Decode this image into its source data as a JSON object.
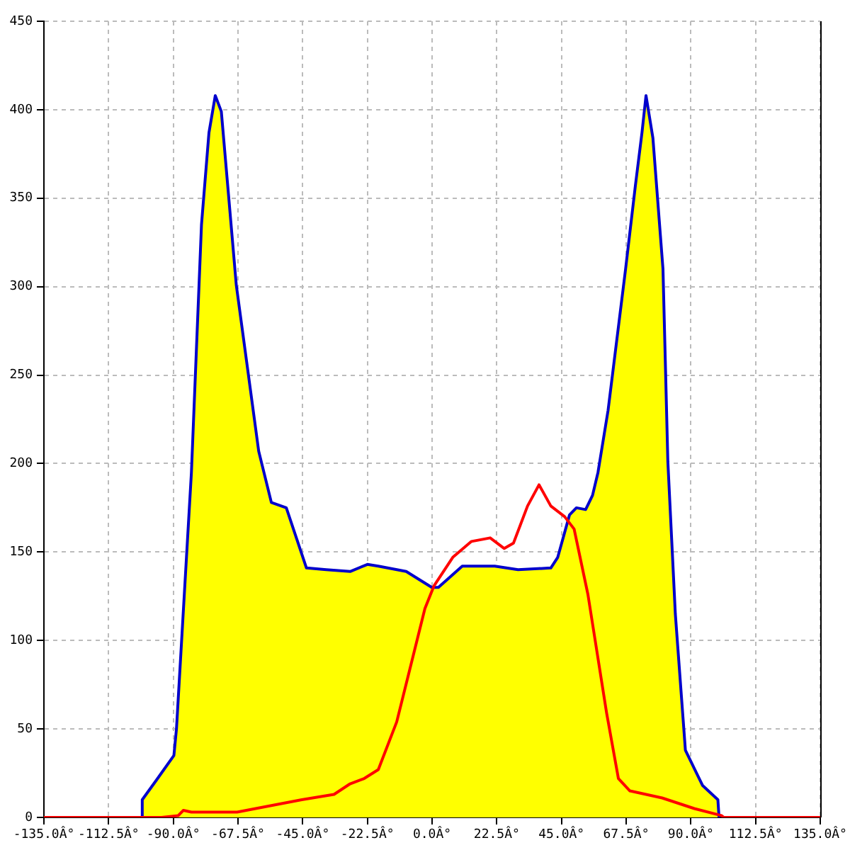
{
  "chart_data": {
    "type": "area",
    "xlim": [
      -135,
      135
    ],
    "xticks": [
      {
        "value": -135,
        "label": "-135.0Â°"
      },
      {
        "value": -112.5,
        "label": "-112.5Â°"
      },
      {
        "value": -90,
        "label": "-90.0Â°"
      },
      {
        "value": -67.5,
        "label": "-67.5Â°"
      },
      {
        "value": -45,
        "label": "-45.0Â°"
      },
      {
        "value": -22.5,
        "label": "-22.5Â°"
      },
      {
        "value": 0,
        "label": "0.0Â°"
      },
      {
        "value": 22.5,
        "label": "22.5Â°"
      },
      {
        "value": 45,
        "label": "45.0Â°"
      },
      {
        "value": 67.5,
        "label": "67.5Â°"
      },
      {
        "value": 90,
        "label": "90.0Â°"
      },
      {
        "value": 112.5,
        "label": "112.5Â°"
      },
      {
        "value": 135,
        "label": "135.0Â°"
      }
    ],
    "ylim": [
      0,
      450
    ],
    "yticks": [
      0,
      50,
      100,
      150,
      200,
      250,
      300,
      350,
      400,
      450
    ],
    "grid": true,
    "marker": "none",
    "series": [
      {
        "color": "#ffff00",
        "x": [
          -101,
          -100.8,
          -95.9,
          -89.8,
          -88.9,
          -83.7,
          -80.2,
          -77.6,
          -75.4,
          -73.3,
          -68.1,
          -60.3,
          -55.9,
          -50.7,
          -47.2,
          -43.7,
          -36.8,
          -28.5,
          -22.5,
          -18.7,
          -9,
          -0.1,
          2.2,
          10.5,
          21.8,
          29.9,
          41.3,
          43.7,
          47.8,
          50.2,
          53.4,
          55.8,
          57.7,
          61.2,
          67.3,
          70.7,
          73,
          74.4,
          76.8,
          80.3,
          82,
          84.6,
          88.1,
          94.1,
          99.4,
          99.8
        ],
        "values": [
          0,
          10,
          21,
          35,
          50,
          195,
          335,
          387,
          408,
          399,
          301,
          207,
          178,
          175,
          158,
          141,
          140,
          139,
          143,
          142,
          139,
          130,
          130,
          142,
          142,
          140,
          141,
          147,
          171,
          175,
          174,
          182,
          195,
          230,
          310,
          357,
          387,
          408,
          384,
          310,
          201,
          115,
          38,
          18,
          10,
          0
        ]
      },
      {
        "type": "line",
        "color": "#ff0000",
        "x": [
          -135,
          -94.1,
          -88.3,
          -86.5,
          -83.7,
          -67.8,
          -45.3,
          -34.1,
          -28.5,
          -23.6,
          -18.7,
          -12.3,
          -7.4,
          -2.5,
          0.7,
          7.2,
          13.7,
          20.2,
          25.1,
          28.3,
          33.2,
          37.2,
          41.3,
          46.1,
          49.4,
          54.2,
          60.7,
          64.8,
          68.8,
          80,
          91.2,
          100.7,
          101.5,
          135
        ],
        "values": [
          0,
          0,
          1,
          4,
          3,
          3,
          10,
          13,
          19,
          22,
          27,
          54,
          86,
          118,
          131,
          147,
          156,
          158,
          152,
          155,
          176,
          188,
          176,
          170,
          163,
          126,
          59,
          22,
          15,
          11,
          5,
          1,
          0,
          0
        ]
      }
    ]
  }
}
